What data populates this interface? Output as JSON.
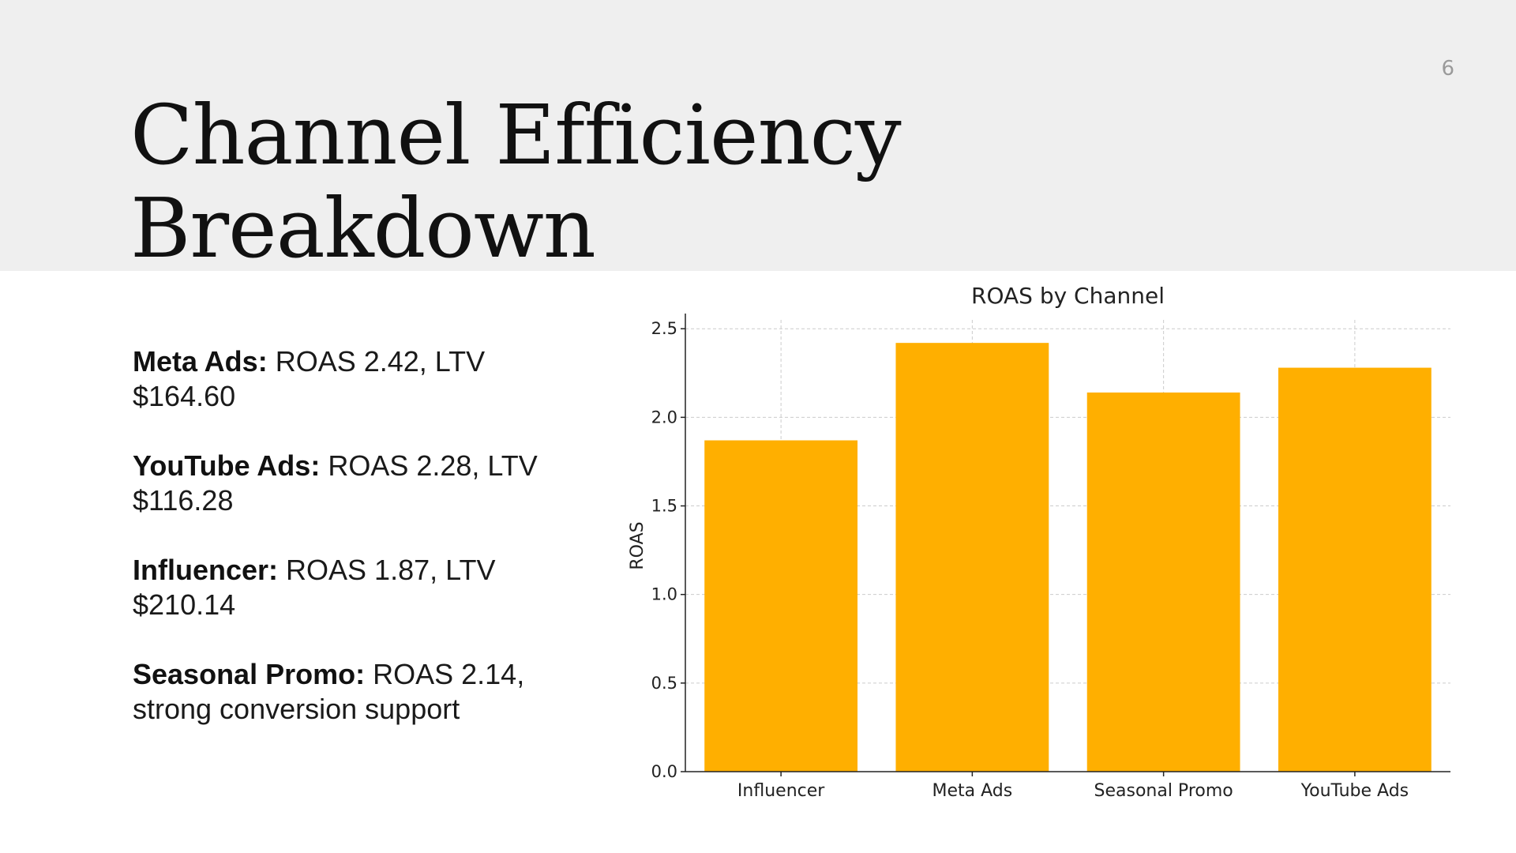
{
  "slide": {
    "number": "6",
    "title": "Channel Efficiency Breakdown"
  },
  "bullets": [
    {
      "label": "Meta Ads:",
      "text": " ROAS 2.42, LTV $164.60"
    },
    {
      "label": "YouTube Ads:",
      "text": " ROAS 2.28, LTV $116.28"
    },
    {
      "label": "Influencer:",
      "text": " ROAS 1.87, LTV $210.14"
    },
    {
      "label": "Seasonal Promo:",
      "text": " ROAS 2.14, strong conversion support"
    }
  ],
  "chart_data": {
    "type": "bar",
    "title": "ROAS by Channel",
    "xlabel": "",
    "ylabel": "ROAS",
    "categories": [
      "Influencer",
      "Meta Ads",
      "Seasonal Promo",
      "YouTube Ads"
    ],
    "values": [
      1.87,
      2.42,
      2.14,
      2.28
    ],
    "ylim": [
      0,
      2.55
    ],
    "yticks": [
      "0.0",
      "0.5",
      "1.0",
      "1.5",
      "2.0",
      "2.5"
    ],
    "grid": true,
    "bar_color": "#FFAF00"
  }
}
